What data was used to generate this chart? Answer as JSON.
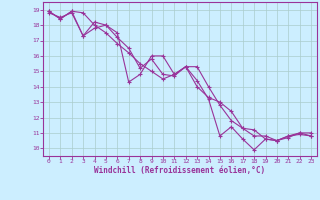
{
  "line_color": "#993399",
  "bg_color": "#cceeff",
  "grid_color": "#aacccc",
  "xlabel": "Windchill (Refroidissement éolien,°C)",
  "xlim": [
    -0.5,
    23.5
  ],
  "ylim": [
    9.5,
    19.5
  ],
  "yticks": [
    10,
    11,
    12,
    13,
    14,
    15,
    16,
    17,
    18,
    19
  ],
  "xticks": [
    0,
    1,
    2,
    3,
    4,
    5,
    6,
    7,
    8,
    9,
    10,
    11,
    12,
    13,
    14,
    15,
    16,
    17,
    18,
    19,
    20,
    21,
    22,
    23
  ],
  "lines": [
    {
      "x": [
        0,
        1,
        2,
        3,
        4,
        5,
        6,
        7,
        8,
        9,
        10,
        11,
        12,
        13,
        14,
        15,
        16,
        17,
        18,
        19,
        20,
        21,
        22,
        23
      ],
      "y": [
        18.8,
        18.5,
        18.8,
        17.3,
        17.8,
        18.0,
        17.5,
        14.3,
        14.8,
        16.0,
        16.0,
        14.8,
        15.3,
        14.4,
        13.2,
        10.8,
        11.4,
        10.6,
        9.9,
        10.6,
        10.5,
        10.8,
        10.9,
        10.8
      ]
    },
    {
      "x": [
        0,
        1,
        2,
        3,
        4,
        5,
        6,
        7,
        8,
        9,
        10,
        11,
        12,
        13,
        14,
        15,
        16,
        17,
        18,
        19,
        20,
        21,
        22,
        23
      ],
      "y": [
        18.9,
        18.4,
        18.9,
        18.8,
        18.0,
        17.5,
        16.8,
        16.2,
        15.5,
        15.0,
        14.5,
        14.8,
        15.3,
        14.0,
        13.3,
        13.0,
        12.4,
        11.3,
        11.2,
        10.6,
        10.5,
        10.7,
        11.0,
        11.0
      ]
    },
    {
      "x": [
        0,
        1,
        2,
        3,
        4,
        5,
        6,
        7,
        8,
        9,
        10,
        11,
        12,
        13,
        14,
        15,
        16,
        17,
        18,
        19,
        20,
        21,
        22,
        23
      ],
      "y": [
        18.9,
        18.4,
        18.9,
        17.3,
        18.2,
        18.0,
        17.2,
        16.5,
        15.2,
        15.8,
        14.8,
        14.7,
        15.3,
        15.3,
        14.0,
        12.8,
        11.8,
        11.3,
        10.8,
        10.8,
        10.5,
        10.8,
        11.0,
        10.8
      ]
    }
  ]
}
